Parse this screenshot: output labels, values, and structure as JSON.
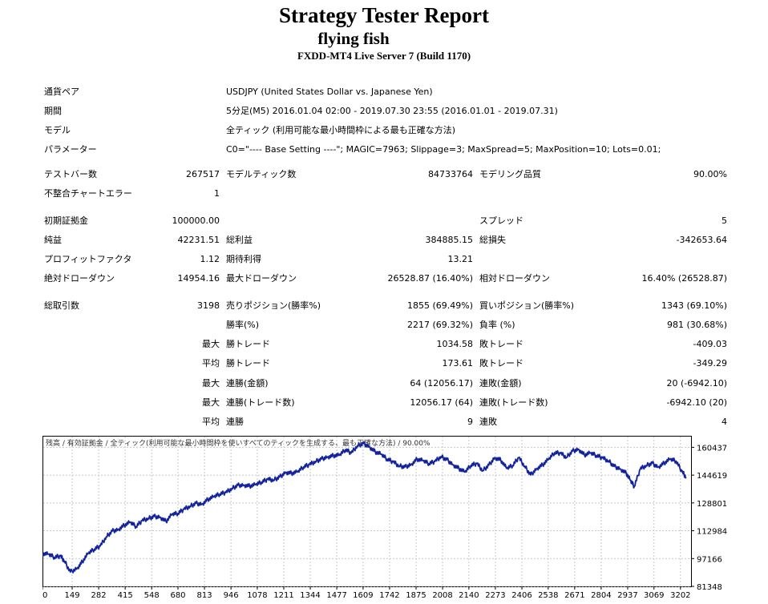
{
  "header": {
    "title": "Strategy Tester Report",
    "ea_name": "flying fish",
    "server": "FXDD-MT4 Live Server 7 (Build 1170)"
  },
  "info": {
    "symbol_label": "通貨ペア",
    "symbol_value": "USDJPY (United States Dollar vs. Japanese Yen)",
    "period_label": "期間",
    "period_value": "5分足(M5) 2016.01.04 02:00 - 2019.07.30 23:55 (2016.01.01 - 2019.07.31)",
    "model_label": "モデル",
    "model_value": "全ティック (利用可能な最小時間枠による最も正確な方法)",
    "params_label": "パラメーター",
    "params_value": "C0=\"---- Base Setting ----\"; MAGIC=7963; Slippage=3; MaxSpread=5; MaxPosition=10; Lots=0.01;"
  },
  "stats": {
    "bars_label": "テストバー数",
    "bars_value": "267517",
    "ticks_label": "モデルティック数",
    "ticks_value": "84733764",
    "quality_label": "モデリング品質",
    "quality_value": "90.00%",
    "errors_label": "不整合チャートエラー",
    "errors_value": "1",
    "deposit_label": "初期証拠金",
    "deposit_value": "100000.00",
    "spread_label": "スプレッド",
    "spread_value": "5",
    "net_label": "純益",
    "net_value": "42231.51",
    "gross_profit_label": "総利益",
    "gross_profit_value": "384885.15",
    "gross_loss_label": "総損失",
    "gross_loss_value": "-342653.64",
    "pf_label": "プロフィットファクタ",
    "pf_value": "1.12",
    "payoff_label": "期待利得",
    "payoff_value": "13.21",
    "abs_dd_label": "絶対ドローダウン",
    "abs_dd_value": "14954.16",
    "max_dd_label": "最大ドローダウン",
    "max_dd_value": "26528.87 (16.40%)",
    "rel_dd_label": "相対ドローダウン",
    "rel_dd_value": "16.40% (26528.87)",
    "trades_label": "総取引数",
    "trades_value": "3198",
    "short_label": "売りポジション(勝率%)",
    "short_value": "1855 (69.49%)",
    "long_label": "買いポジション(勝率%)",
    "long_value": "1343 (69.10%)",
    "win_rate_label": "勝率(%)",
    "win_rate_value": "2217 (69.32%)",
    "loss_rate_label": "負率 (%)",
    "loss_rate_value": "981 (30.68%)",
    "largest_prefix": "最大",
    "average_prefix": "平均",
    "max_win_label": "勝トレード",
    "max_win_value": "1034.58",
    "max_loss_label": "敗トレード",
    "max_loss_value": "-409.03",
    "avg_win_label": "勝トレード",
    "avg_win_value": "173.61",
    "avg_loss_label": "敗トレード",
    "avg_loss_value": "-349.29",
    "cons_wins_money_label": "連勝(金額)",
    "cons_wins_money_value": "64 (12056.17)",
    "cons_loss_money_label": "連敗(金額)",
    "cons_loss_money_value": "20 (-6942.10)",
    "cons_wins_count_label": "連勝(トレード数)",
    "cons_wins_count_value": "12056.17 (64)",
    "cons_loss_count_label": "連敗(トレード数)",
    "cons_loss_count_value": "-6942.10 (20)",
    "avg_cons_wins_label": "連勝",
    "avg_cons_wins_value": "9",
    "avg_cons_loss_label": "連敗",
    "avg_cons_loss_value": "4"
  },
  "colors": {
    "balance": "#1a1aa8",
    "equity": "#1a9a3a",
    "grid": "#c8c8c8"
  },
  "chart_data": {
    "type": "line",
    "legend_text": "残高 / 有効証拠金 / 全ティック(利用可能な最小時間枠を使いすべてのティックを生成する、最も正確な方法) / 90.00%",
    "xlim": [
      0,
      3255
    ],
    "ylim": [
      81348,
      167000
    ],
    "x_ticks": [
      "0",
      "149",
      "282",
      "415",
      "548",
      "680",
      "813",
      "946",
      "1078",
      "1211",
      "1344",
      "1477",
      "1609",
      "1742",
      "1875",
      "2008",
      "2140",
      "2273",
      "2406",
      "2538",
      "2671",
      "2804",
      "2937",
      "3069",
      "3202"
    ],
    "y_ticks": [
      "160437",
      "144619",
      "128801",
      "112984",
      "97166",
      "81348"
    ],
    "series": [
      {
        "x": [
          0,
          30,
          60,
          90,
          110,
          140,
          175,
          200,
          230,
          260,
          290,
          320,
          350,
          380,
          410,
          440,
          470,
          500,
          530,
          560,
          590,
          620,
          650,
          680,
          710,
          740,
          770,
          800,
          830,
          860,
          890,
          920,
          950,
          980,
          1010,
          1040,
          1070,
          1100,
          1130,
          1160,
          1190,
          1220,
          1250,
          1280,
          1310,
          1340,
          1370,
          1400,
          1430,
          1460,
          1490,
          1520,
          1550,
          1580,
          1610,
          1640,
          1670,
          1700,
          1730,
          1760,
          1790,
          1820,
          1850,
          1880,
          1910,
          1940,
          1970,
          2000,
          2030,
          2060,
          2090,
          2120,
          2150,
          2180,
          2210,
          2240,
          2270,
          2300,
          2330,
          2360,
          2390,
          2420,
          2450,
          2480,
          2510,
          2540,
          2570,
          2600,
          2630,
          2660,
          2690,
          2720,
          2750,
          2780,
          2810,
          2840,
          2870,
          2900,
          2930,
          2950,
          2970,
          3000,
          3030,
          3060,
          3090,
          3120,
          3150,
          3180,
          3210,
          3230
        ],
        "y": [
          100000,
          99600,
          97900,
          98600,
          95800,
          89500,
          91800,
          95400,
          100200,
          102500,
          104300,
          109500,
          112800,
          113700,
          116100,
          117800,
          115400,
          118700,
          120000,
          121100,
          120800,
          118300,
          122300,
          122900,
          125200,
          126900,
          128600,
          128100,
          130800,
          132300,
          133900,
          134700,
          137000,
          138800,
          139000,
          138400,
          139200,
          140700,
          142200,
          141900,
          143500,
          146300,
          145700,
          146400,
          149300,
          150600,
          152400,
          153800,
          155000,
          155700,
          155900,
          159100,
          157200,
          161300,
          162600,
          160800,
          157900,
          156400,
          153700,
          152100,
          149900,
          149300,
          150700,
          153700,
          152800,
          151200,
          152400,
          155200,
          153400,
          150600,
          148400,
          146300,
          150200,
          151200,
          147200,
          150300,
          154600,
          153200,
          148400,
          150200,
          154600,
          149700,
          144700,
          148300,
          150500,
          153600,
          157400,
          157000,
          154800,
          158300,
          159400,
          156100,
          157200,
          155800,
          154400,
          152800,
          149600,
          148200,
          145700,
          141700,
          138200,
          148100,
          150100,
          151400,
          149200,
          151500,
          153700,
          152600,
          146500,
          143500
        ]
      }
    ]
  }
}
